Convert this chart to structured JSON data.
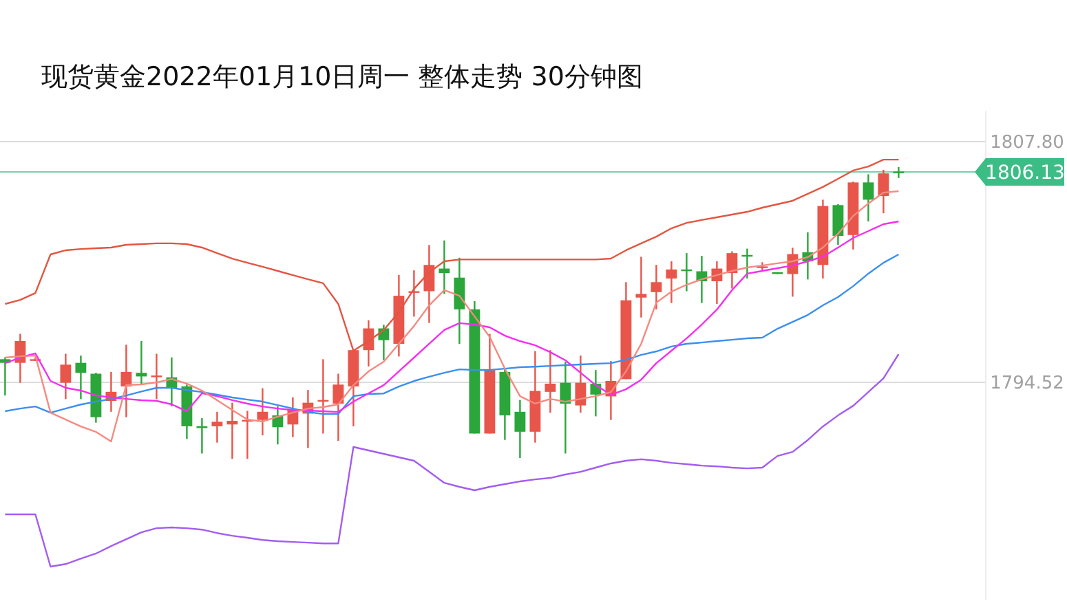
{
  "chart_data": {
    "type": "candlestick",
    "title": "现货黄金2022年01月10日周一  整体走势  30分钟图",
    "categories": [
      null,
      null,
      null,
      null,
      null,
      null,
      null,
      null,
      null,
      null,
      null,
      null,
      null,
      null,
      null,
      null,
      null,
      null,
      null,
      null,
      null,
      null,
      null,
      null,
      null,
      null,
      null,
      null,
      null,
      null,
      null,
      null,
      null,
      null,
      null,
      null,
      null,
      null,
      null,
      null,
      null,
      null,
      null,
      null,
      null,
      null,
      null,
      null,
      null,
      null,
      null,
      null,
      null,
      null,
      null,
      null,
      null,
      null,
      null,
      null
    ],
    "ohlc": [
      [
        1795.8,
        1795.9,
        1793.8,
        1795.6
      ],
      [
        1795.6,
        1797.2,
        1794.5,
        1796.8
      ],
      [
        1795.8,
        1795.9,
        1795.7,
        1795.8
      ],
      null,
      [
        1794.5,
        1796.1,
        1793.6,
        1795.5
      ],
      [
        1795.6,
        1796.0,
        1793.6,
        1795.05
      ],
      [
        1795.0,
        1795.05,
        1792.3,
        1792.6
      ],
      [
        1793.5,
        1795.1,
        1792.9,
        1794.0
      ],
      [
        1794.3,
        1796.6,
        1792.6,
        1795.1
      ],
      [
        1795.05,
        1796.8,
        1794.4,
        1794.85
      ],
      [
        1794.85,
        1796.1,
        1793.6,
        1794.9
      ],
      [
        1794.8,
        1795.9,
        1793.2,
        1794.2
      ],
      [
        1794.3,
        1794.4,
        1791.4,
        1792.1
      ],
      [
        1792.1,
        1792.55,
        1790.6,
        1792.0
      ],
      [
        1792.1,
        1792.9,
        1791.2,
        1792.35
      ],
      [
        1792.2,
        1793.4,
        1790.3,
        1792.4
      ],
      [
        1792.4,
        1792.95,
        1790.3,
        1792.45
      ],
      [
        1792.45,
        1794.2,
        1791.6,
        1792.9
      ],
      [
        1792.7,
        1793.2,
        1791.1,
        1792.05
      ],
      [
        1792.2,
        1793.7,
        1791.5,
        1793.0
      ],
      [
        1792.8,
        1794.1,
        1790.9,
        1793.4
      ],
      [
        1793.5,
        1795.8,
        1791.7,
        1793.55
      ],
      [
        1793.35,
        1795.0,
        1791.3,
        1794.4
      ],
      [
        1794.3,
        1796.3,
        1792.1,
        1796.3
      ],
      [
        1796.3,
        1797.95,
        1795.4,
        1797.5
      ],
      [
        1797.5,
        1797.7,
        1795.75,
        1796.85
      ],
      [
        1796.65,
        1800.45,
        1795.95,
        1799.3
      ],
      [
        1799.5,
        1800.7,
        1798.15,
        1799.55
      ],
      [
        1799.55,
        1802.1,
        1797.8,
        1801.0
      ],
      [
        1800.8,
        1802.35,
        1799.4,
        1800.55
      ],
      [
        1800.3,
        1801.4,
        1796.65,
        1798.55
      ],
      [
        1798.55,
        1799.0,
        1791.7,
        1791.7
      ],
      [
        1791.7,
        1797.2,
        1791.7,
        1795.2
      ],
      [
        1795.1,
        1795.3,
        1791.35,
        1792.7
      ],
      [
        1792.9,
        1793.55,
        1790.35,
        1791.8
      ],
      [
        1791.8,
        1796.25,
        1791.2,
        1794.05
      ],
      [
        1794.0,
        1796.3,
        1792.85,
        1794.45
      ],
      [
        1794.5,
        1795.65,
        1790.6,
        1793.35
      ],
      [
        1793.25,
        1796.0,
        1792.85,
        1794.5
      ],
      [
        1794.45,
        1795.2,
        1792.65,
        1793.85
      ],
      [
        1793.75,
        1795.7,
        1792.45,
        1794.6
      ],
      [
        1794.7,
        1800.05,
        1794.7,
        1799.05
      ],
      [
        1799.2,
        1801.45,
        1798.1,
        1799.4
      ],
      [
        1799.5,
        1801.0,
        1798.55,
        1800.05
      ],
      [
        1800.25,
        1801.2,
        1798.9,
        1800.75
      ],
      [
        1800.75,
        1801.65,
        1799.55,
        1800.7
      ],
      [
        1800.65,
        1801.5,
        1798.9,
        1800.1
      ],
      [
        1800.1,
        1801.2,
        1798.85,
        1800.8
      ],
      [
        1800.55,
        1801.75,
        1799.7,
        1801.65
      ],
      [
        1801.55,
        1801.9,
        1800.25,
        1801.5
      ],
      [
        1800.9,
        1801.15,
        1800.7,
        1800.92
      ],
      [
        1800.6,
        1800.6,
        1800.5,
        1800.5
      ],
      [
        1800.5,
        1801.95,
        1799.25,
        1801.6
      ],
      [
        1801.7,
        1802.8,
        1800.2,
        1801.2
      ],
      [
        1801.0,
        1804.6,
        1800.25,
        1804.25
      ],
      [
        1804.3,
        1804.35,
        1802.1,
        1802.6
      ],
      [
        1802.65,
        1805.6,
        1801.85,
        1805.55
      ],
      [
        1805.55,
        1806.0,
        1803.4,
        1804.6
      ],
      [
        1804.8,
        1806.25,
        1803.85,
        1806.05
      ],
      [
        1806.15,
        1806.4,
        1805.8,
        1806.13
      ]
    ],
    "colors": [
      "#2aa63a",
      "#e8554a",
      "#e8554a",
      null,
      "#e8554a",
      "#2aa63a",
      "#2aa63a",
      "#e8554a",
      "#e8554a",
      "#2aa63a",
      "#e8554a",
      "#2aa63a",
      "#2aa63a",
      "#2aa63a",
      "#e8554a",
      "#e8554a",
      "#e8554a",
      "#e8554a",
      "#2aa63a",
      "#e8554a",
      "#e8554a",
      "#e8554a",
      "#e8554a",
      "#e8554a",
      "#e8554a",
      "#2aa63a",
      "#e8554a",
      "#e8554a",
      "#e8554a",
      "#2aa63a",
      "#2aa63a",
      "#2aa63a",
      "#e8554a",
      "#2aa63a",
      "#2aa63a",
      "#e8554a",
      "#e8554a",
      "#2aa63a",
      "#e8554a",
      "#2aa63a",
      "#e8554a",
      "#e8554a",
      "#e8554a",
      "#e8554a",
      "#e8554a",
      "#2aa63a",
      "#2aa63a",
      "#e8554a",
      "#e8554a",
      "#2aa63a",
      "#e8554a",
      "#2aa63a",
      "#e8554a",
      "#2aa63a",
      "#e8554a",
      "#2aa63a",
      "#e8554a",
      "#2aa63a",
      "#e8554a",
      "#2aa63a"
    ],
    "series": [
      {
        "type": "line",
        "color": "#e4553f",
        "values": [
          1798.85,
          1799.07,
          1799.45,
          1801.58,
          1801.81,
          1801.88,
          1801.92,
          1801.96,
          1802.11,
          1802.15,
          1802.19,
          1802.19,
          1802.15,
          1801.96,
          1801.65,
          1801.35,
          1801.12,
          1800.9,
          1800.67,
          1800.44,
          1800.21,
          1799.99,
          1798.85,
          1796.27,
          1796.8,
          1797.41,
          1798.39,
          1799.68,
          1800.59,
          1801.2,
          1801.3,
          1801.3,
          1801.3,
          1801.3,
          1801.3,
          1801.3,
          1801.3,
          1801.3,
          1801.3,
          1801.3,
          1801.35,
          1801.81,
          1802.19,
          1802.56,
          1803.02,
          1803.32,
          1803.48,
          1803.63,
          1803.78,
          1803.93,
          1804.16,
          1804.35,
          1804.54,
          1804.92,
          1805.3,
          1805.75,
          1806.21,
          1806.43,
          1806.81,
          1806.81
        ]
      },
      {
        "type": "line",
        "color": "#a35cf0",
        "values": [
          1787.24,
          1787.24,
          1787.24,
          1784.36,
          1784.5,
          1784.8,
          1785.08,
          1785.49,
          1785.87,
          1786.25,
          1786.48,
          1786.52,
          1786.48,
          1786.4,
          1786.21,
          1786.06,
          1785.95,
          1785.83,
          1785.76,
          1785.72,
          1785.68,
          1785.64,
          1785.64,
          1790.96,
          1790.77,
          1790.58,
          1790.39,
          1790.2,
          1789.59,
          1788.98,
          1788.76,
          1788.57,
          1788.76,
          1788.91,
          1789.06,
          1789.17,
          1789.25,
          1789.44,
          1789.59,
          1789.82,
          1790.05,
          1790.2,
          1790.28,
          1790.2,
          1790.08,
          1790.01,
          1789.93,
          1789.89,
          1789.82,
          1789.78,
          1789.82,
          1790.46,
          1790.69,
          1791.34,
          1792.09,
          1792.7,
          1793.23,
          1793.99,
          1794.75,
          1796.08
        ]
      },
      {
        "type": "line",
        "color": "#3b8ef0",
        "values": [
          1792.93,
          1793.08,
          1793.19,
          1792.85,
          1793.08,
          1793.3,
          1793.46,
          1793.61,
          1793.8,
          1794.02,
          1794.22,
          1794.22,
          1794.1,
          1793.99,
          1793.84,
          1793.69,
          1793.57,
          1793.46,
          1793.27,
          1793.08,
          1792.89,
          1792.78,
          1792.78,
          1793.76,
          1793.88,
          1793.91,
          1794.29,
          1794.6,
          1794.83,
          1795.05,
          1795.24,
          1795.21,
          1795.21,
          1795.28,
          1795.36,
          1795.39,
          1795.43,
          1795.47,
          1795.51,
          1795.55,
          1795.58,
          1795.77,
          1796.04,
          1796.23,
          1796.5,
          1796.65,
          1796.72,
          1796.8,
          1796.87,
          1796.95,
          1796.99,
          1797.48,
          1797.86,
          1798.24,
          1798.77,
          1799.23,
          1799.83,
          1800.52,
          1801.12,
          1801.58
        ]
      },
      {
        "type": "line",
        "color": "#f52ef0",
        "values": [
          1795.58,
          1795.89,
          1796.12,
          1794.6,
          1794.22,
          1794.07,
          1793.8,
          1793.69,
          1793.61,
          1793.54,
          1793.5,
          1793.31,
          1792.93,
          1793.92,
          1793.76,
          1793.54,
          1793.35,
          1793.19,
          1793.08,
          1793.0,
          1792.97,
          1792.93,
          1792.89,
          1793.46,
          1793.92,
          1794.37,
          1795.13,
          1795.89,
          1796.65,
          1797.41,
          1797.79,
          1797.71,
          1797.56,
          1797.1,
          1796.8,
          1796.57,
          1796.19,
          1795.74,
          1795.05,
          1794.37,
          1793.84,
          1794.14,
          1794.67,
          1795.58,
          1796.27,
          1796.95,
          1797.71,
          1798.54,
          1799.61,
          1800.52,
          1800.67,
          1800.82,
          1800.97,
          1801.2,
          1801.46,
          1801.96,
          1802.49,
          1802.87,
          1803.25,
          1803.4
        ]
      },
      {
        "type": "line",
        "color": "#f58a80",
        "values": [
          1795.89,
          1795.96,
          1796.0,
          1792.85,
          1792.47,
          1792.09,
          1791.79,
          1791.26,
          1794.37,
          1794.41,
          1794.52,
          1794.71,
          1794.45,
          1794.07,
          1793.54,
          1793.0,
          1792.47,
          1792.36,
          1792.63,
          1792.85,
          1793.08,
          1793.16,
          1793.31,
          1794.37,
          1795.13,
          1795.66,
          1796.65,
          1797.63,
          1798.77,
          1799.61,
          1799.3,
          1798.16,
          1797.03,
          1795.28,
          1793.76,
          1793.35,
          1793.61,
          1793.46,
          1793.61,
          1793.76,
          1793.99,
          1795.13,
          1796.65,
          1798.92,
          1799.53,
          1799.91,
          1800.21,
          1800.44,
          1800.67,
          1800.86,
          1800.97,
          1801.09,
          1801.2,
          1801.43,
          1801.96,
          1802.72,
          1803.7,
          1804.39,
          1804.99,
          1805.07
        ]
      }
    ],
    "ylim": [
      1782.5,
      1809.5
    ],
    "yticks": [
      {
        "value": 1807.8,
        "label": "1807.80"
      },
      {
        "value": 1794.52,
        "label": "1794.52"
      }
    ],
    "grid": "y",
    "tick_labels": "y",
    "ref_lines": [
      {
        "axis": "y",
        "value": 1806.13,
        "label": "1806.13",
        "color": "#3dbd86"
      }
    ]
  }
}
